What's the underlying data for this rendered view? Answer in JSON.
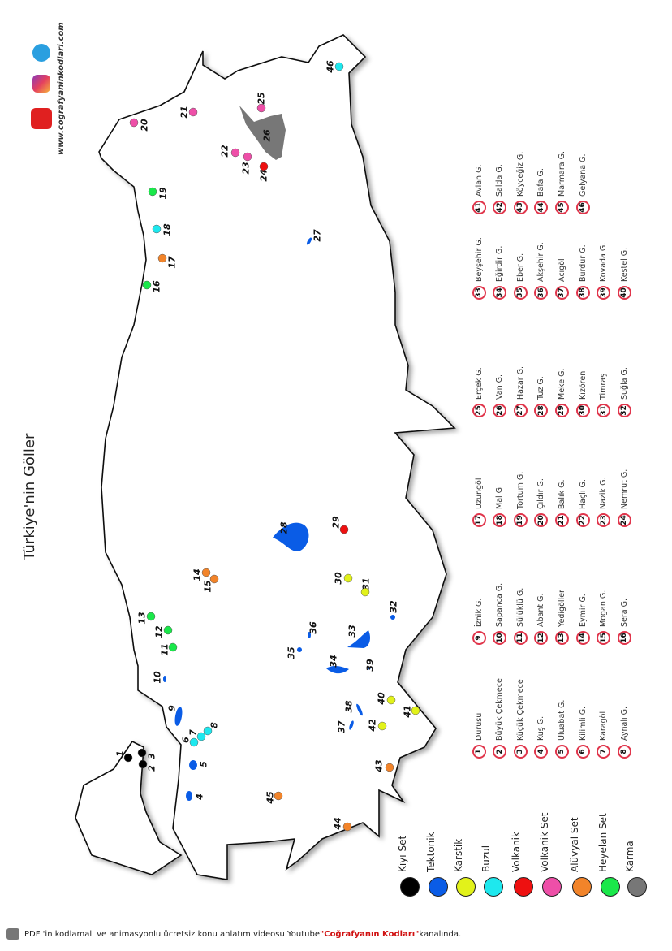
{
  "title": "Türkiye'nin Göller",
  "website": "www.cografyaninkodlari.com",
  "social_icons": [
    "telegram-icon",
    "instagram-icon",
    "youtube-icon"
  ],
  "colors": {
    "kiyi_set": "#000000",
    "tektonik": "#0a5ce6",
    "karstik": "#e2f21a",
    "buzul": "#1ee8ee",
    "volkanik": "#ee1010",
    "volkanik_set": "#ee4fa8",
    "aluvyal_set": "#f2842a",
    "heyelan_set": "#1ae84a",
    "karma": "#777777",
    "list_circle": "#e0354b"
  },
  "legend": [
    {
      "label": "Kıyı Set",
      "type": "kiyi_set"
    },
    {
      "label": "Tektonik",
      "type": "tektonik"
    },
    {
      "label": "Karstik",
      "type": "karstik"
    },
    {
      "label": "Buzul",
      "type": "buzul"
    },
    {
      "label": "Volkanik",
      "type": "volkanik"
    },
    {
      "label": "Volkanik Set",
      "type": "volkanik_set"
    },
    {
      "label": "Alüvyal Set",
      "type": "aluvyal_set"
    },
    {
      "label": "Heyelan Set",
      "type": "heyelan_set"
    },
    {
      "label": "Karma",
      "type": "karma"
    }
  ],
  "lakes": [
    {
      "n": "1",
      "name": "Durusu",
      "type": "kiyi_set"
    },
    {
      "n": "2",
      "name": "Büyük Çekmece",
      "type": "kiyi_set"
    },
    {
      "n": "3",
      "name": "Küçük Çekmece",
      "type": "kiyi_set"
    },
    {
      "n": "4",
      "name": "Kuş G.",
      "type": "tektonik"
    },
    {
      "n": "5",
      "name": "Uluabat G.",
      "type": "tektonik"
    },
    {
      "n": "6",
      "name": "Kilimli G.",
      "type": "buzul"
    },
    {
      "n": "7",
      "name": "Karagöl",
      "type": "buzul"
    },
    {
      "n": "8",
      "name": "Aynalı G.",
      "type": "buzul"
    },
    {
      "n": "9",
      "name": "İznik G.",
      "type": "tektonik"
    },
    {
      "n": "10",
      "name": "Sapanca G.",
      "type": "tektonik"
    },
    {
      "n": "11",
      "name": "Sülüklü G.",
      "type": "heyelan_set"
    },
    {
      "n": "12",
      "name": "Abant G.",
      "type": "heyelan_set"
    },
    {
      "n": "13",
      "name": "Yedigöller",
      "type": "heyelan_set"
    },
    {
      "n": "14",
      "name": "Eymir G.",
      "type": "aluvyal_set"
    },
    {
      "n": "15",
      "name": "Mogan G.",
      "type": "aluvyal_set"
    },
    {
      "n": "16",
      "name": "Sera G.",
      "type": "heyelan_set"
    },
    {
      "n": "17",
      "name": "Uzungöl",
      "type": "aluvyal_set"
    },
    {
      "n": "18",
      "name": "Mal G.",
      "type": "buzul"
    },
    {
      "n": "19",
      "name": "Tortum G.",
      "type": "heyelan_set"
    },
    {
      "n": "20",
      "name": "Çıldır G.",
      "type": "volkanik_set"
    },
    {
      "n": "21",
      "name": "Balık G.",
      "type": "volkanik_set"
    },
    {
      "n": "22",
      "name": "Haçlı G.",
      "type": "volkanik_set"
    },
    {
      "n": "23",
      "name": "Nazik G.",
      "type": "volkanik_set"
    },
    {
      "n": "24",
      "name": "Nemrut G.",
      "type": "volkanik"
    },
    {
      "n": "25",
      "name": "Erçek G.",
      "type": "volkanik_set"
    },
    {
      "n": "26",
      "name": "Van G.",
      "type": "karma"
    },
    {
      "n": "27",
      "name": "Hazar G.",
      "type": "tektonik"
    },
    {
      "n": "28",
      "name": "Tuz G.",
      "type": "tektonik"
    },
    {
      "n": "29",
      "name": "Meke G.",
      "type": "volkanik"
    },
    {
      "n": "30",
      "name": "Kızören",
      "type": "karstik"
    },
    {
      "n": "31",
      "name": "Timraş",
      "type": "karstik"
    },
    {
      "n": "32",
      "name": "Suğla G.",
      "type": "tektonik"
    },
    {
      "n": "33",
      "name": "Beyşehir G.",
      "type": "tektonik"
    },
    {
      "n": "34",
      "name": "Eğirdir G.",
      "type": "tektonik"
    },
    {
      "n": "35",
      "name": "Eber G.",
      "type": "tektonik"
    },
    {
      "n": "36",
      "name": "Akşehir G.",
      "type": "tektonik"
    },
    {
      "n": "37",
      "name": "Acıgöl",
      "type": "tektonik"
    },
    {
      "n": "38",
      "name": "Burdur G.",
      "type": "tektonik"
    },
    {
      "n": "39",
      "name": "Kovada G.",
      "type": "tektonik"
    },
    {
      "n": "40",
      "name": "Kestel G.",
      "type": "karstik"
    },
    {
      "n": "41",
      "name": "Avlan G.",
      "type": "karstik"
    },
    {
      "n": "42",
      "name": "Salda G.",
      "type": "karstik"
    },
    {
      "n": "43",
      "name": "Köyceğiz G.",
      "type": "aluvyal_set"
    },
    {
      "n": "44",
      "name": "Bafa G.",
      "type": "aluvyal_set"
    },
    {
      "n": "45",
      "name": "Marmara G.",
      "type": "aluvyal_set"
    },
    {
      "n": "46",
      "name": "Gelyana G.",
      "type": "buzul"
    }
  ],
  "footer": {
    "text_before": "PDF 'in kodlamalı ve animasyonlu ücretsiz konu anlatım videosu Youtube ",
    "highlight": "\"Coğrafyanın Kodları\"",
    "text_after": " kanalında."
  }
}
